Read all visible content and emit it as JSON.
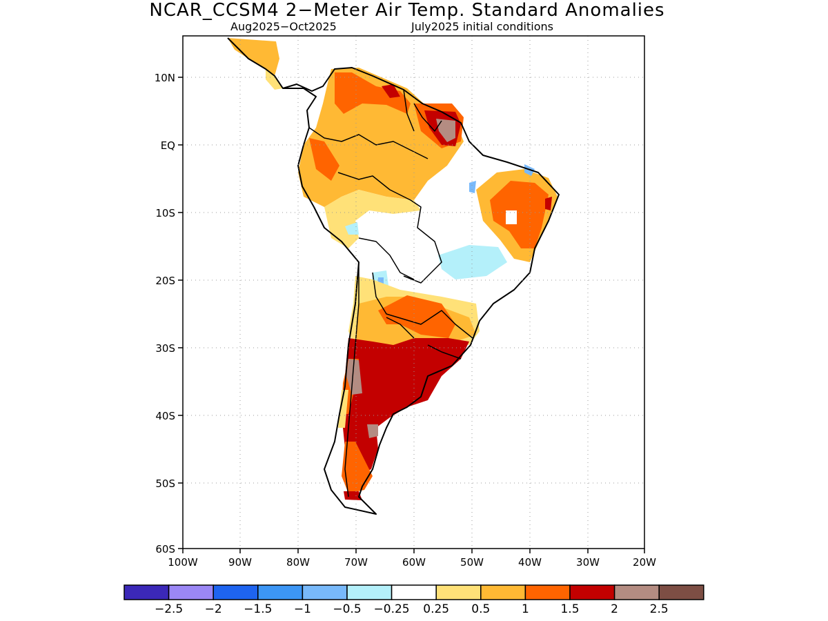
{
  "title": "NCAR_CCSM4 2−Meter Air Temp. Standard Anomalies",
  "subtitle_left": "Aug2025−Oct2025",
  "subtitle_right": "July2025 initial conditions",
  "axes": {
    "lon_labels": [
      "100W",
      "90W",
      "80W",
      "70W",
      "60W",
      "50W",
      "40W",
      "30W",
      "20W"
    ],
    "lat_labels": [
      "10N",
      "EQ",
      "10S",
      "20S",
      "30S",
      "40S",
      "50S",
      "60S"
    ],
    "lon_range": [
      -100,
      -20
    ],
    "lat_range": [
      -60,
      15.5
    ],
    "grid": true
  },
  "colorbar": {
    "labels": [
      "−2.5",
      "−2",
      "−1.5",
      "−1",
      "−0.5",
      "−0.25",
      "0.25",
      "0.5",
      "1",
      "1.5",
      "2",
      "2.5"
    ],
    "colors": [
      "#3b28b8",
      "#9b87f5",
      "#1e64f0",
      "#3c96f5",
      "#78b9fa",
      "#b4f0fa",
      "#ffffff",
      "#ffe178",
      "#ffb934",
      "#ff6400",
      "#c30000",
      "#b48c82",
      "#7d4e44"
    ]
  },
  "map_colors": {
    "land_outline": "#000000",
    "neutral": "#ffffff",
    "weak_warm": "#ffe178",
    "warm": "#ffb934",
    "strong_warm": "#ff6400",
    "very_strong": "#c30000",
    "extreme": "#b48c82",
    "weak_cool": "#b4f0fa",
    "cool": "#78b9fa"
  }
}
